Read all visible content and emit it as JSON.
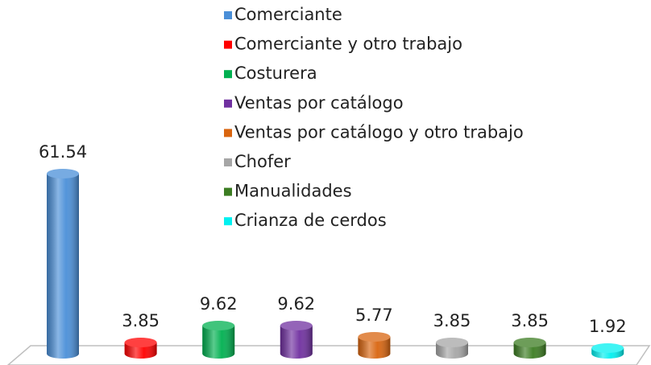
{
  "chart_data": {
    "type": "bar",
    "categories": [
      "Comerciante",
      "Comerciante y otro trabajo",
      "Costurera",
      "Ventas por catálogo",
      "Ventas por catálogo y otro trabajo",
      "Chofer",
      "Manualidades",
      "Crianza de cerdos"
    ],
    "values": [
      61.54,
      3.85,
      9.62,
      9.62,
      5.77,
      3.85,
      3.85,
      1.92
    ],
    "colors": [
      "#4a8fd8",
      "#ff0000",
      "#00b050",
      "#7030a0",
      "#d9650f",
      "#a6a6a6",
      "#3c7d22",
      "#00f0f0"
    ]
  }
}
